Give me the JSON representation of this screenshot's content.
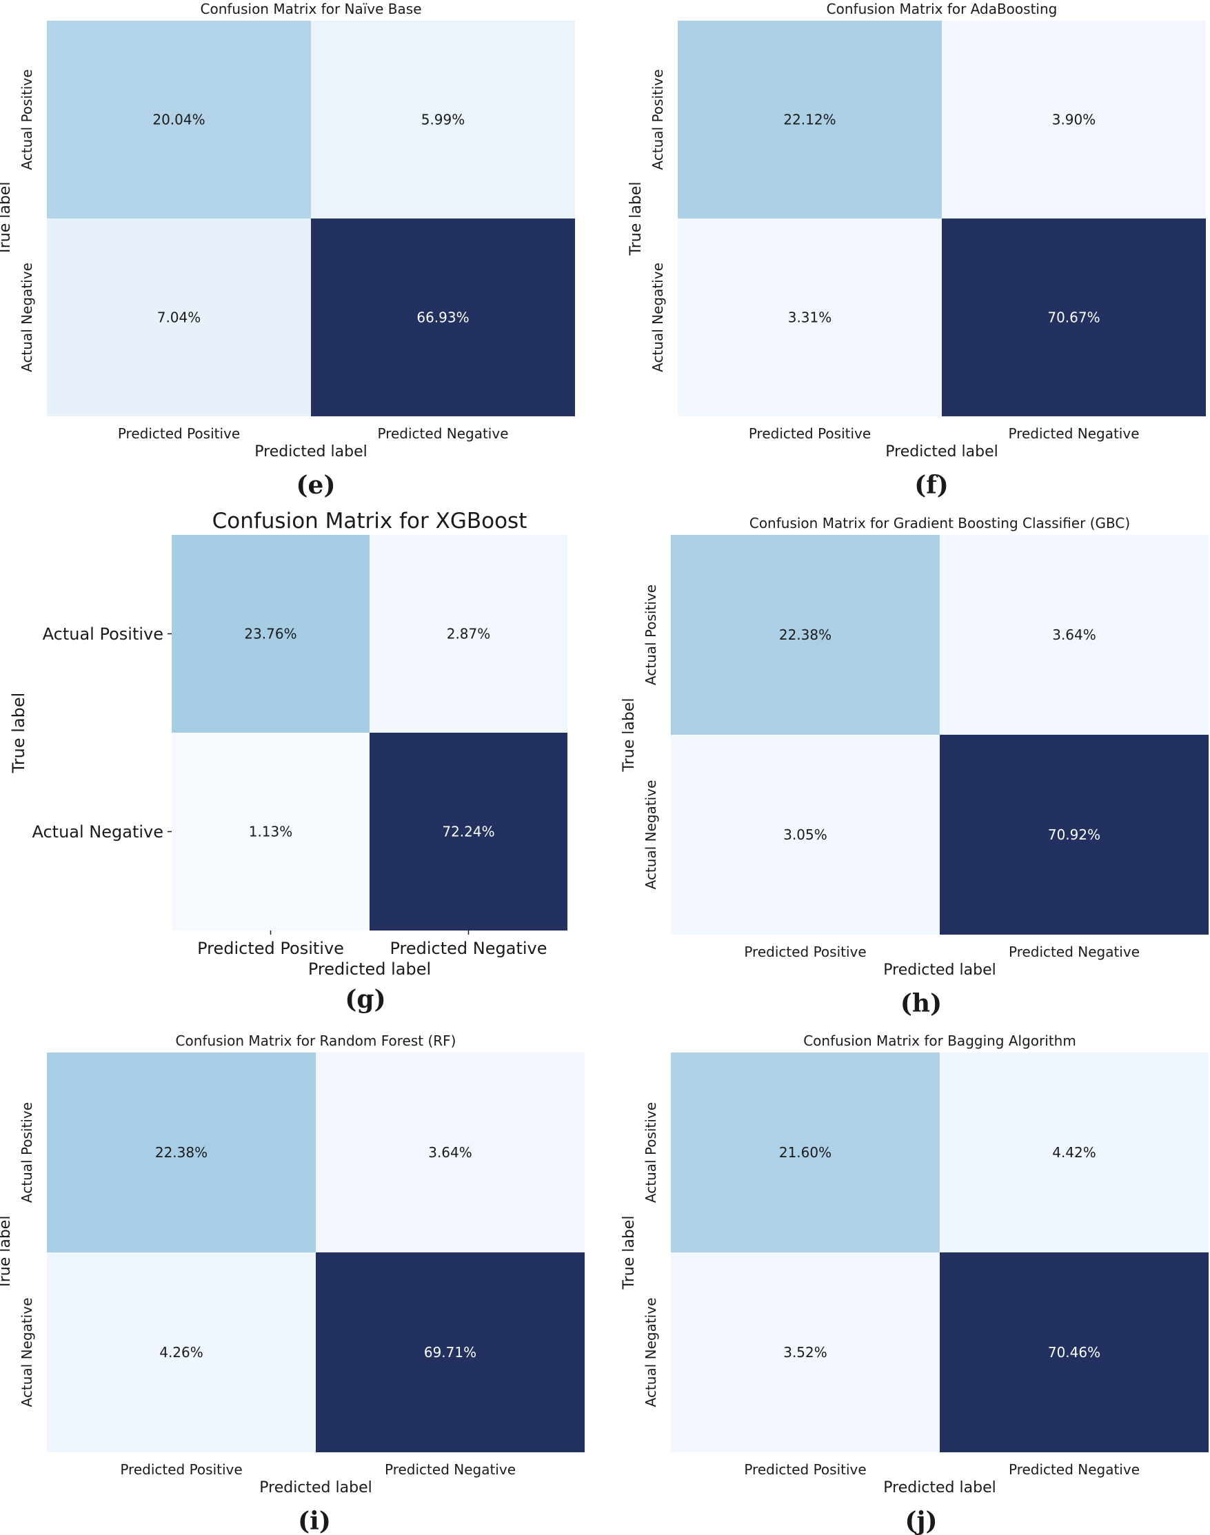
{
  "figure": {
    "chart_data": [
      {
        "type": "heatmap",
        "panel": "(e)",
        "title": "Confusion Matrix for Naïve Base",
        "xlabel": "Predicted label",
        "ylabel": "True label",
        "rows": [
          "Actual Positive",
          "Actual Negative"
        ],
        "columns": [
          "Predicted Positive",
          "Predicted Negative"
        ],
        "values": [
          [
            20.04,
            5.99
          ],
          [
            7.04,
            66.93
          ]
        ],
        "value_labels": [
          [
            "20.04%",
            "5.99%"
          ],
          [
            "7.04%",
            "66.93%"
          ]
        ],
        "colormap": "Blues"
      },
      {
        "type": "heatmap",
        "panel": "(f)",
        "title": "Confusion Matrix for AdaBoosting",
        "xlabel": "Predicted label",
        "ylabel": "True label",
        "rows": [
          "Actual Positive",
          "Actual Negative"
        ],
        "columns": [
          "Predicted Positive",
          "Predicted Negative"
        ],
        "values": [
          [
            22.12,
            3.9
          ],
          [
            3.31,
            70.67
          ]
        ],
        "value_labels": [
          [
            "22.12%",
            "3.90%"
          ],
          [
            "3.31%",
            "70.67%"
          ]
        ],
        "colormap": "Blues"
      },
      {
        "type": "heatmap",
        "panel": "(g)",
        "title": "Confusion Matrix for XGBoost",
        "xlabel": "Predicted label",
        "ylabel": "True label",
        "rows": [
          "Actual Positive",
          "Actual Negative"
        ],
        "columns": [
          "Predicted Positive",
          "Predicted Negative"
        ],
        "values": [
          [
            23.76,
            2.87
          ],
          [
            1.13,
            72.24
          ]
        ],
        "value_labels": [
          [
            "23.76%",
            "2.87%"
          ],
          [
            "1.13%",
            "72.24%"
          ]
        ],
        "colormap": "Blues"
      },
      {
        "type": "heatmap",
        "panel": "(h)",
        "title": "Confusion Matrix for Gradient Boosting Classifier (GBC)",
        "xlabel": "Predicted label",
        "ylabel": "True label",
        "rows": [
          "Actual Positive",
          "Actual Negative"
        ],
        "columns": [
          "Predicted Positive",
          "Predicted Negative"
        ],
        "values": [
          [
            22.38,
            3.64
          ],
          [
            3.05,
            70.92
          ]
        ],
        "value_labels": [
          [
            "22.38%",
            "3.64%"
          ],
          [
            "3.05%",
            "70.92%"
          ]
        ],
        "colormap": "Blues"
      },
      {
        "type": "heatmap",
        "panel": "(i)",
        "title": "Confusion Matrix for Random Forest (RF)",
        "xlabel": "Predicted label",
        "ylabel": "True label",
        "rows": [
          "Actual Positive",
          "Actual Negative"
        ],
        "columns": [
          "Predicted Positive",
          "Predicted Negative"
        ],
        "values": [
          [
            22.38,
            3.64
          ],
          [
            4.26,
            69.71
          ]
        ],
        "value_labels": [
          [
            "22.38%",
            "3.64%"
          ],
          [
            "4.26%",
            "69.71%"
          ]
        ],
        "colormap": "Blues"
      },
      {
        "type": "heatmap",
        "panel": "(j)",
        "title": "Confusion Matrix for Bagging Algorithm",
        "xlabel": "Predicted label",
        "ylabel": "True label",
        "rows": [
          "Actual Positive",
          "Actual Negative"
        ],
        "columns": [
          "Predicted Positive",
          "Predicted Negative"
        ],
        "values": [
          [
            21.6,
            4.42
          ],
          [
            3.52,
            70.46
          ]
        ],
        "value_labels": [
          [
            "21.60%",
            "4.42%"
          ],
          [
            "3.52%",
            "70.46%"
          ]
        ],
        "colormap": "Blues"
      }
    ]
  }
}
